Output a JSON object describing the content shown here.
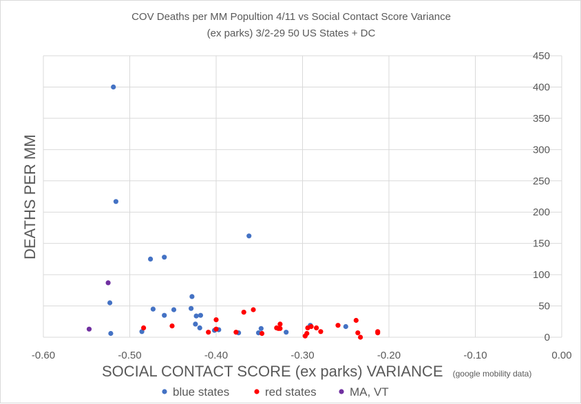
{
  "chart_data": {
    "type": "scatter",
    "title": [
      "COV Deaths per MM Popultion 4/11 vs Social Contact Score Variance",
      "(ex parks) 3/2-29    50 US States + DC"
    ],
    "xlabel": "SOCIAL CONTACT SCORE (ex parks) VARIANCE",
    "xlabel_note": "(google mobility data)",
    "ylabel": "DEATHS PER MM",
    "xlim": [
      -0.6,
      0.0
    ],
    "ylim": [
      0,
      450
    ],
    "x_tick_labels": [
      "-0.60",
      "-0.50",
      "-0.40",
      "-0.30",
      "-0.20",
      "-0.10",
      "0.00"
    ],
    "y_tick_labels": [
      "0",
      "50",
      "100",
      "150",
      "200",
      "250",
      "300",
      "350",
      "400",
      "450"
    ],
    "grid": true,
    "legend_position": "bottom",
    "series": [
      {
        "name": "blue states",
        "color": "#4472c4",
        "points": [
          [
            -0.519,
            400
          ],
          [
            -0.516,
            217
          ],
          [
            -0.362,
            162
          ],
          [
            -0.46,
            128
          ],
          [
            -0.476,
            125
          ],
          [
            -0.428,
            65
          ],
          [
            -0.523,
            55
          ],
          [
            -0.473,
            45
          ],
          [
            -0.449,
            44
          ],
          [
            -0.429,
            46
          ],
          [
            -0.46,
            35
          ],
          [
            -0.418,
            35
          ],
          [
            -0.423,
            34
          ],
          [
            -0.424,
            21
          ],
          [
            -0.419,
            15
          ],
          [
            -0.397,
            12
          ],
          [
            -0.402,
            11
          ],
          [
            -0.374,
            7
          ],
          [
            -0.351,
            7
          ],
          [
            -0.348,
            14
          ],
          [
            -0.319,
            8
          ],
          [
            -0.291,
            19
          ],
          [
            -0.25,
            17
          ],
          [
            -0.486,
            9
          ],
          [
            -0.522,
            6
          ]
        ]
      },
      {
        "name": "red states",
        "color": "#ff0000",
        "points": [
          [
            -0.484,
            15
          ],
          [
            -0.451,
            18
          ],
          [
            -0.409,
            8
          ],
          [
            -0.4,
            28
          ],
          [
            -0.377,
            8
          ],
          [
            -0.368,
            40
          ],
          [
            -0.357,
            44
          ],
          [
            -0.347,
            6
          ],
          [
            -0.33,
            15
          ],
          [
            -0.326,
            21
          ],
          [
            -0.326,
            14
          ],
          [
            -0.297,
            2
          ],
          [
            -0.295,
            6
          ],
          [
            -0.294,
            15
          ],
          [
            -0.29,
            17
          ],
          [
            -0.284,
            15
          ],
          [
            -0.279,
            9
          ],
          [
            -0.259,
            19
          ],
          [
            -0.238,
            27
          ],
          [
            -0.236,
            7
          ],
          [
            -0.233,
            0
          ],
          [
            -0.213,
            9
          ],
          [
            -0.213,
            7
          ],
          [
            -0.328,
            14
          ],
          [
            -0.4,
            13
          ]
        ]
      },
      {
        "name": "MA, VT",
        "color": "#7030a0",
        "points": [
          [
            -0.525,
            87
          ],
          [
            -0.547,
            13
          ]
        ]
      }
    ]
  }
}
